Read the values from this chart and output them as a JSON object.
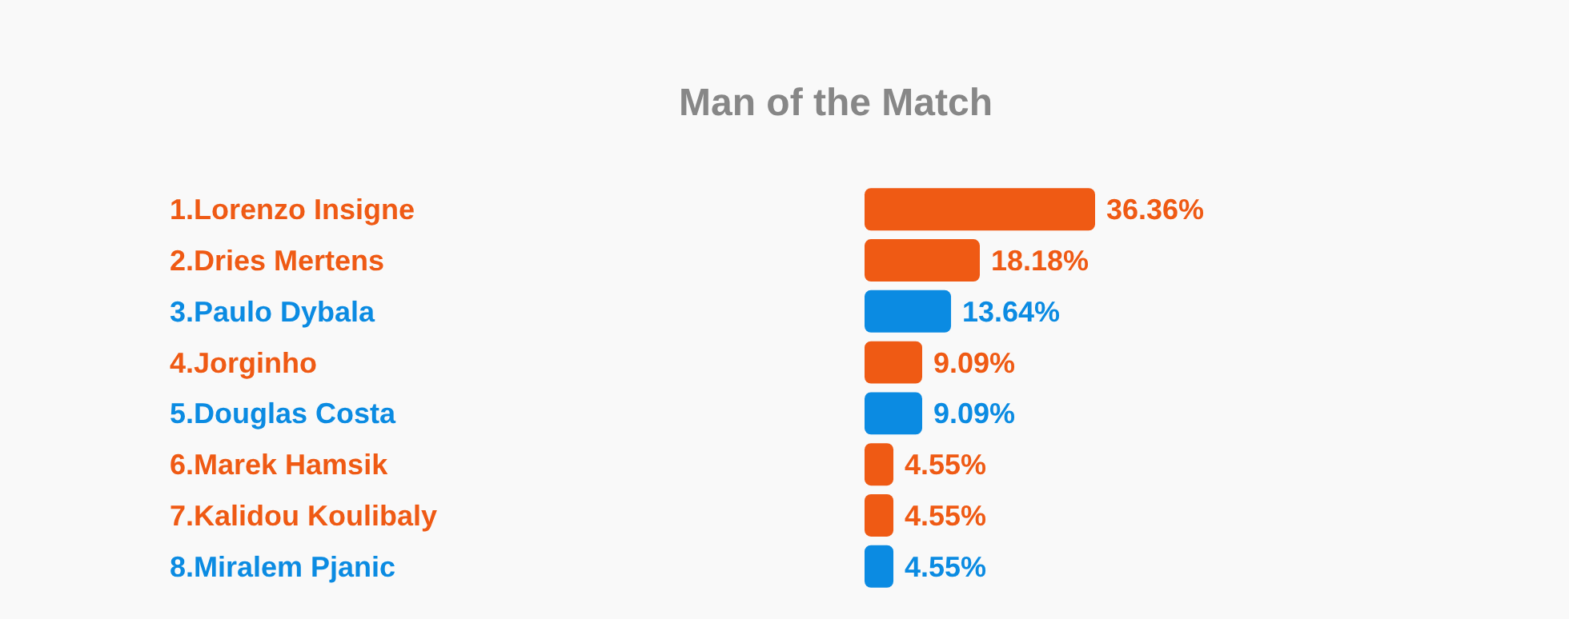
{
  "chart_data": {
    "type": "bar",
    "orientation": "horizontal",
    "title": "Man of the Match",
    "categories": [
      "1.Lorenzo Insigne",
      "2.Dries Mertens",
      "3.Paulo Dybala",
      "4.Jorginho",
      "5.Douglas Costa",
      "6.Marek Hamsik",
      "7.Kalidou Koulibaly",
      "8.Miralem Pjanic"
    ],
    "values": [
      36.36,
      18.18,
      13.64,
      9.09,
      9.09,
      4.55,
      4.55,
      4.55
    ],
    "colors": [
      "#ef5a14",
      "#ef5a14",
      "#0b8be2",
      "#ef5a14",
      "#0b8be2",
      "#ef5a14",
      "#ef5a14",
      "#0b8be2"
    ],
    "value_labels": [
      "36.36%",
      "18.18%",
      "13.64%",
      "9.09%",
      "9.09%",
      "4.55%",
      "4.55%",
      "4.55%"
    ]
  }
}
